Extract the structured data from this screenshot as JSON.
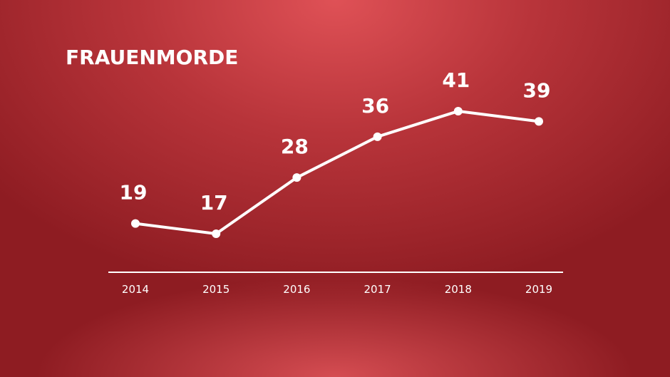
{
  "chart_data": {
    "type": "line",
    "title": "FRAUENMORDE",
    "categories": [
      "2014",
      "2015",
      "2016",
      "2017",
      "2018",
      "2019"
    ],
    "values": [
      19,
      17,
      28,
      36,
      41,
      39
    ],
    "color": "#ffffff"
  }
}
